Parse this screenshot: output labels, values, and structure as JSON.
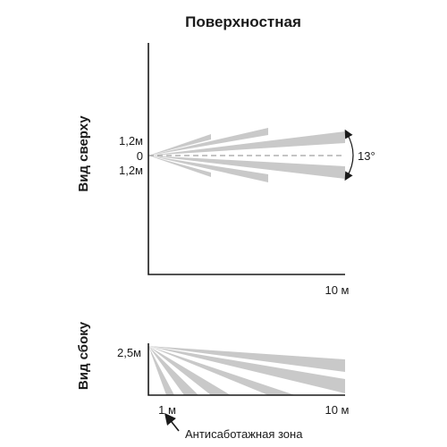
{
  "title": "Поверхностная",
  "top_view": {
    "side_label": "Вид сверху",
    "upper_label": "1,2м",
    "center_label": "0",
    "lower_label": "1,2м",
    "range_label": "10 м",
    "angle_label": "13°"
  },
  "side_view": {
    "side_label": "Вид сбоку",
    "height_label": "2,5м",
    "near_label": "1 м",
    "far_label": "10 м",
    "zone_label": "Антисаботажная зона"
  },
  "colors": {
    "beam": "#c9c9c9",
    "axis": "#1a1a1a"
  }
}
